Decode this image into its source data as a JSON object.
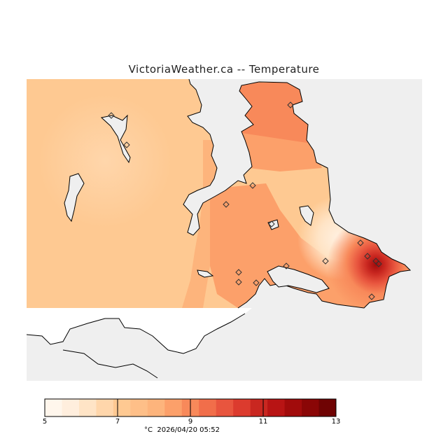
{
  "title": "VictoriaWeather.ca -- Temperature",
  "legend": {
    "ticks": [
      "5",
      "7",
      "9",
      "11",
      "13"
    ],
    "unit": "°C",
    "timestamp": "2026/04/20 05:52",
    "colors": [
      "#fff6ec",
      "#ffeedd",
      "#ffe4c6",
      "#ffd6ab",
      "#fec992",
      "#febf88",
      "#fdb47c",
      "#fca06a",
      "#f8895a",
      "#f16e4a",
      "#e8553e",
      "#dc3b2e",
      "#c92720",
      "#b81414",
      "#a10b0b",
      "#8a0606",
      "#6f0303"
    ]
  },
  "map": {
    "ocean_color": "#efefef",
    "station_marker": "diamond",
    "stations_count": 16
  }
}
